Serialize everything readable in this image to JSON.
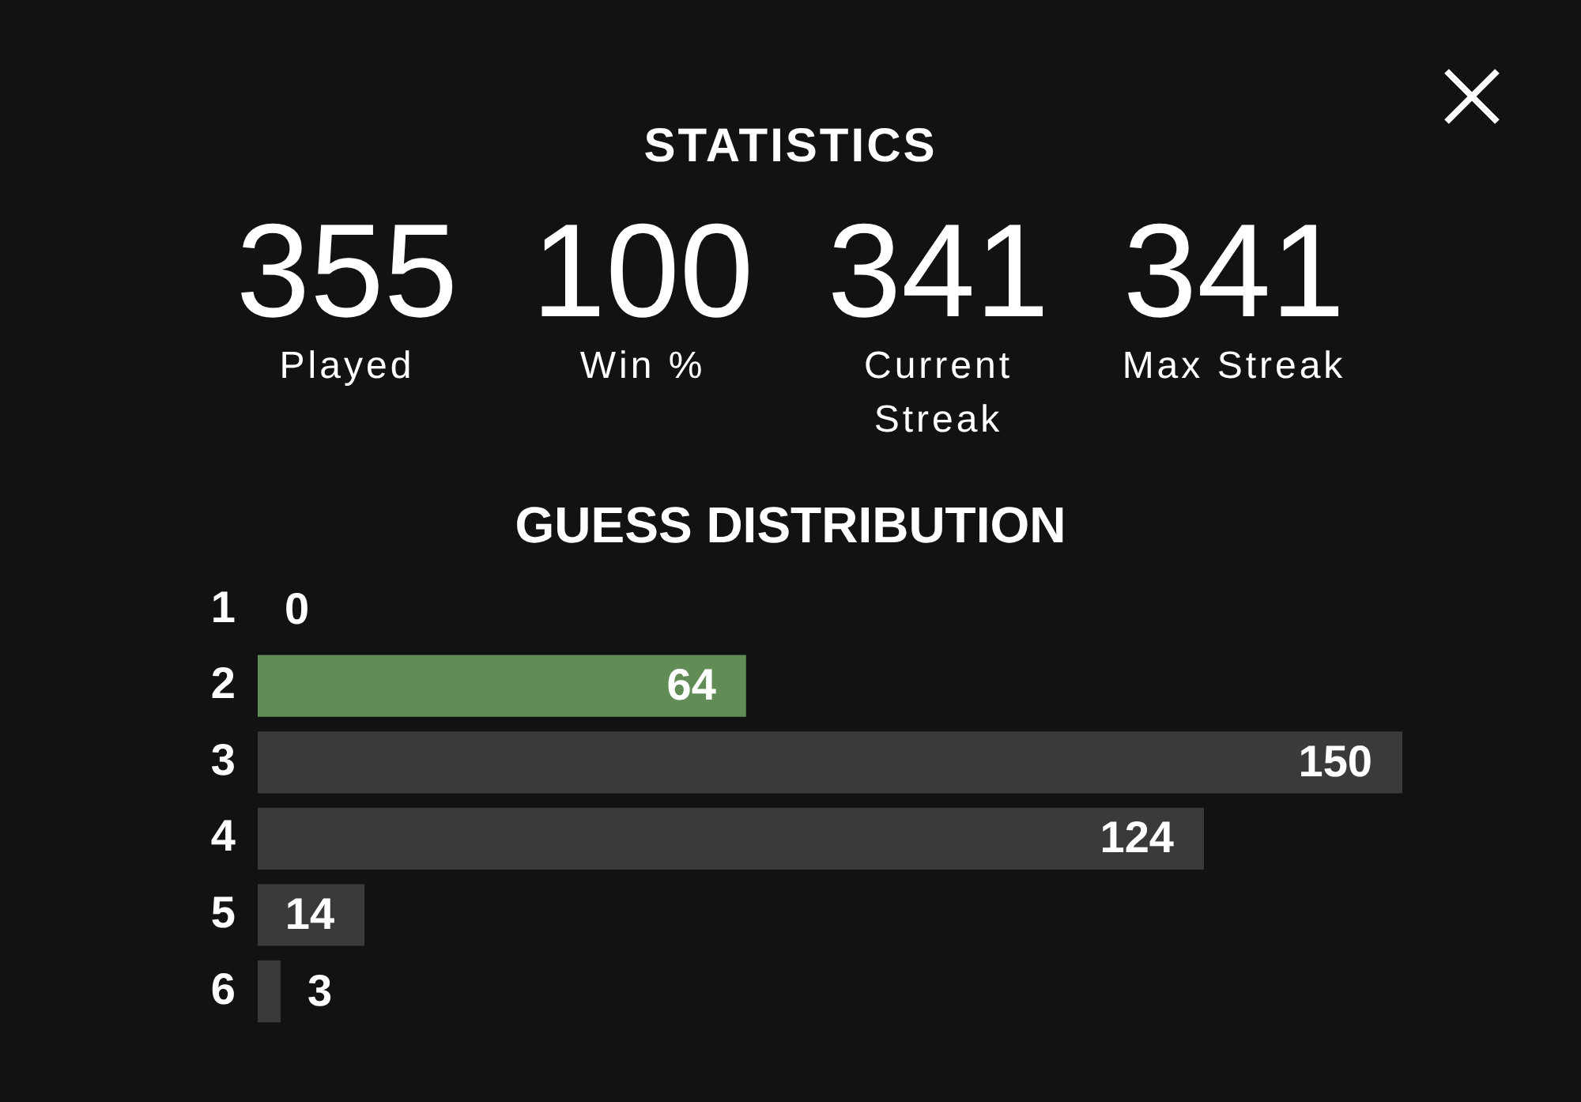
{
  "chart_data": [
    {
      "type": "other",
      "title": "STATISTICS",
      "categories": [
        "Played",
        "Win %",
        "Current Streak",
        "Max Streak"
      ],
      "values": [
        355,
        100,
        341,
        341
      ],
      "data_labels": true
    },
    {
      "type": "bar",
      "title": "GUESS DISTRIBUTION",
      "categories": [
        "1",
        "2",
        "3",
        "4",
        "5",
        "6"
      ],
      "values": [
        0,
        64,
        150,
        124,
        14,
        3
      ],
      "colors": [
        "#3a3a3c",
        "#618c55",
        "#3a3a3c",
        "#3a3a3c",
        "#3a3a3c",
        "#3a3a3c"
      ],
      "orientation": "horizontal",
      "data_labels": true,
      "tick_labels": "y"
    }
  ]
}
